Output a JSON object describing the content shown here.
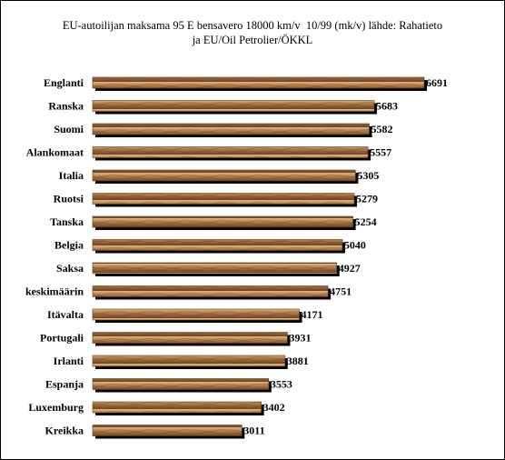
{
  "chart_data": {
    "type": "bar",
    "orientation": "horizontal",
    "title_line1": "EU-autoilijan maksama 95 E bensavero 18000 km/v  10/99 (mk/v) lähde: Rahatieto",
    "title_line2": "ja EU/Oil Petrolier/ÖKKL",
    "categories": [
      "Englanti",
      "Ranska",
      "Suomi",
      "Alankomaat",
      "Italia",
      "Ruotsi",
      "Tanska",
      "Belgia",
      "Saksa",
      "keskimäärin",
      "Itävalta",
      "Portugali",
      "Irlanti",
      "Espanja",
      "Luxemburg",
      "Kreikka"
    ],
    "values": [
      6691,
      5683,
      5582,
      5557,
      5305,
      5279,
      5254,
      5040,
      4927,
      4751,
      4171,
      3931,
      3881,
      3553,
      3402,
      3011
    ],
    "value_labels": [
      "6691",
      "5683",
      "5582",
      "5557",
      "5305",
      "5279",
      "5254",
      "5040",
      "4927",
      "4751",
      "4171",
      "3931",
      "3881",
      "3553",
      "3402",
      "3011"
    ],
    "xlim": [
      0,
      6691
    ],
    "grid": false,
    "legend": "none",
    "colors": {
      "bar_light": "#c99a6a",
      "bar_mid": "#9a6a3c",
      "bar_dark": "#5c3a1c",
      "shadow": "#000000"
    }
  }
}
